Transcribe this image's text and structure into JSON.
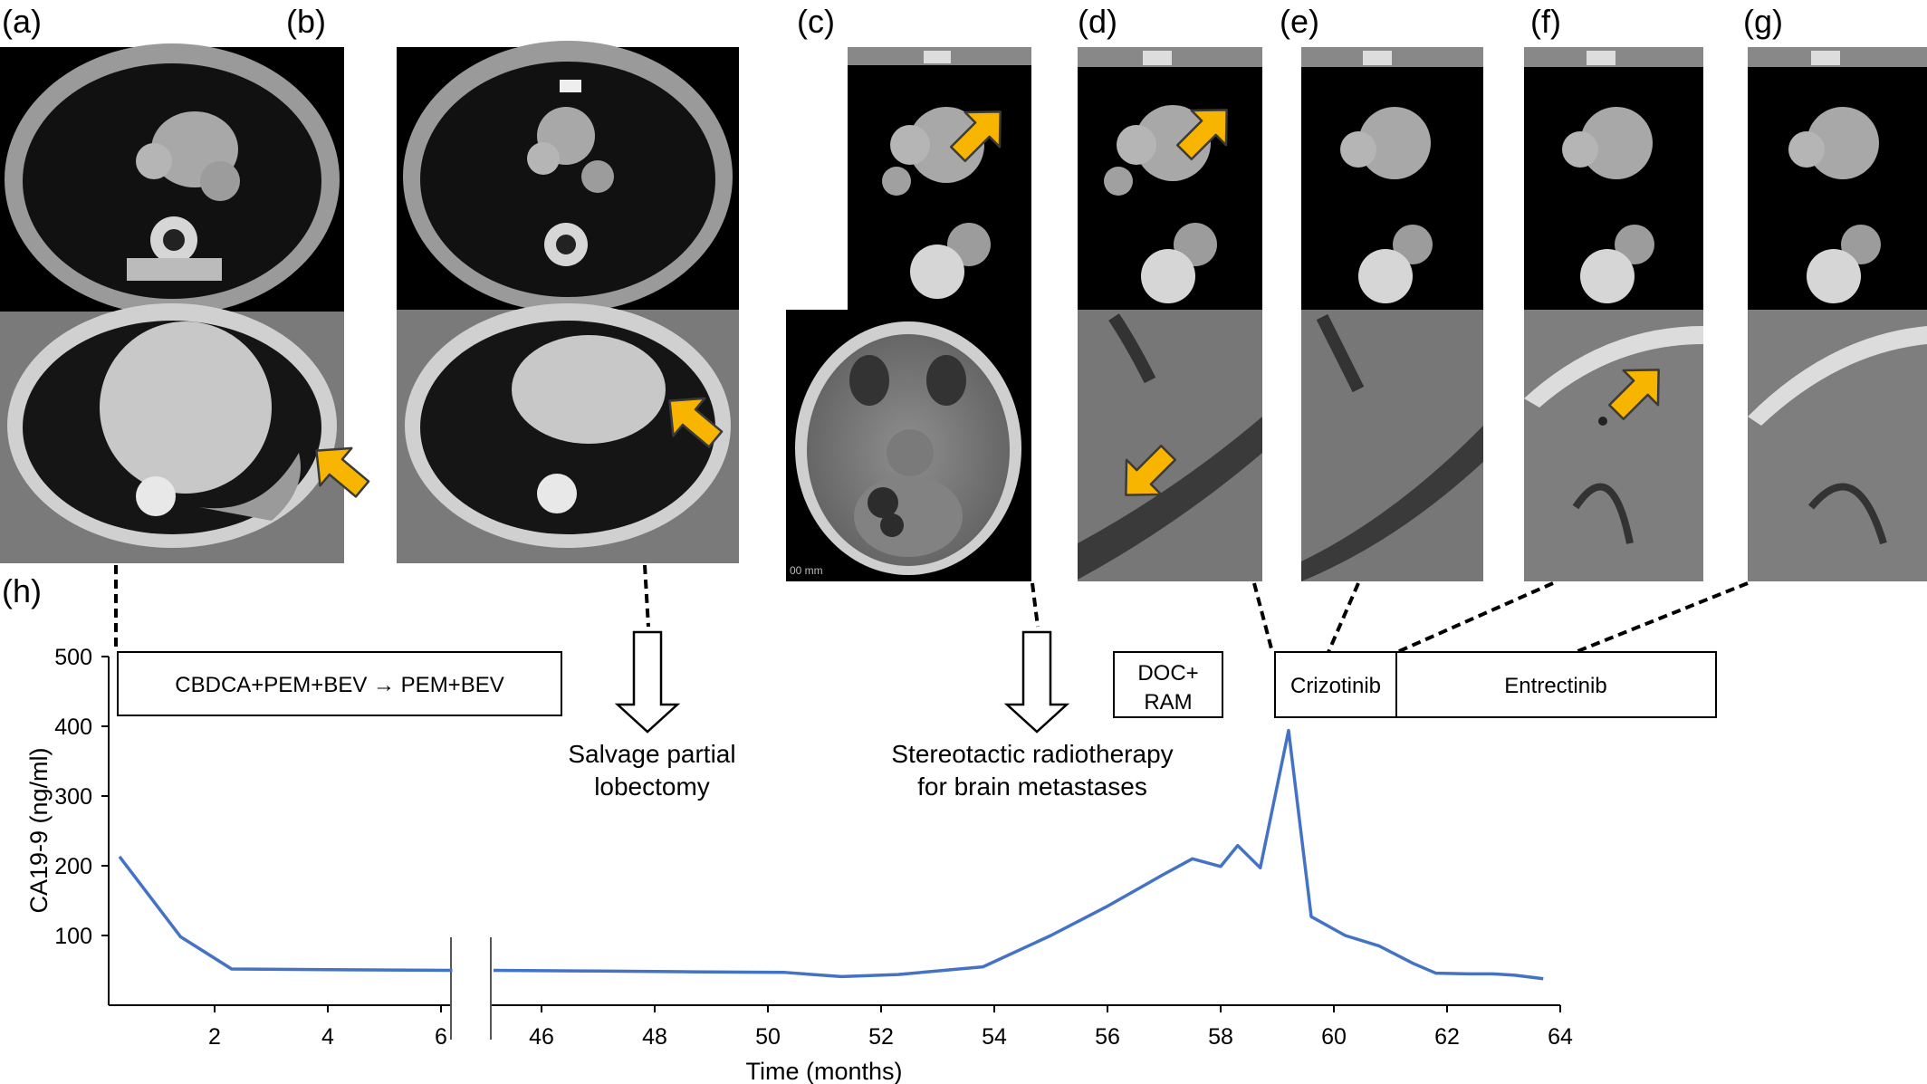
{
  "panels": {
    "a": "(a)",
    "b": "(b)",
    "c": "(c)",
    "d": "(d)",
    "e": "(e)",
    "f": "(f)",
    "g": "(g)",
    "h": "(h)"
  },
  "images": {
    "c_mri_caption": "00 mm"
  },
  "colors": {
    "line": "#4472c4",
    "arrow": "#f7b500",
    "arrow_stroke": "#3a3a3a"
  },
  "treatments": {
    "first_line": "CBDCA+PEM+BEV → PEM+BEV",
    "doc_line1": "DOC+",
    "doc_line2": "RAM",
    "crizotinib": "Crizotinib",
    "entrectinib": "Entrectinib"
  },
  "annotations": {
    "surgery_line1": "Salvage partial",
    "surgery_line2": "lobectomy",
    "srt_line1": "Stereotactic radiotherapy",
    "srt_line2": "for brain metastases"
  },
  "chart_data": {
    "type": "line",
    "title": "",
    "xlabel": "Time (months)",
    "ylabel": "CA19-9 (ng/ml)",
    "ylim": [
      0,
      500
    ],
    "yticks": [
      100,
      200,
      300,
      400,
      500
    ],
    "axis_break": "between month 6 and month 45",
    "xticks_left": [
      2,
      4,
      6
    ],
    "xticks_right": [
      46,
      48,
      50,
      52,
      54,
      56,
      58,
      60,
      62,
      64
    ],
    "grid": false,
    "legend": "none",
    "series": [
      {
        "points_left": [
          [
            0.2,
            213
          ],
          [
            1.4,
            98
          ],
          [
            2.3,
            52
          ],
          [
            4,
            51
          ],
          [
            6.2,
            50
          ]
        ],
        "points_right": [
          [
            44.9,
            50
          ],
          [
            47,
            49
          ],
          [
            48.5,
            48
          ],
          [
            50.3,
            47
          ],
          [
            51.3,
            41
          ],
          [
            52.3,
            44
          ],
          [
            53.8,
            55
          ],
          [
            55,
            100
          ],
          [
            56,
            142
          ],
          [
            57,
            188
          ],
          [
            57.5,
            210
          ],
          [
            58,
            199
          ],
          [
            58.3,
            229
          ],
          [
            58.7,
            197
          ],
          [
            59.2,
            394
          ],
          [
            59.6,
            127
          ],
          [
            60.2,
            100
          ],
          [
            60.8,
            85
          ],
          [
            61.4,
            60
          ],
          [
            61.8,
            46
          ],
          [
            62.4,
            45
          ],
          [
            62.8,
            45
          ],
          [
            63.2,
            43
          ],
          [
            63.7,
            38
          ]
        ]
      }
    ]
  }
}
